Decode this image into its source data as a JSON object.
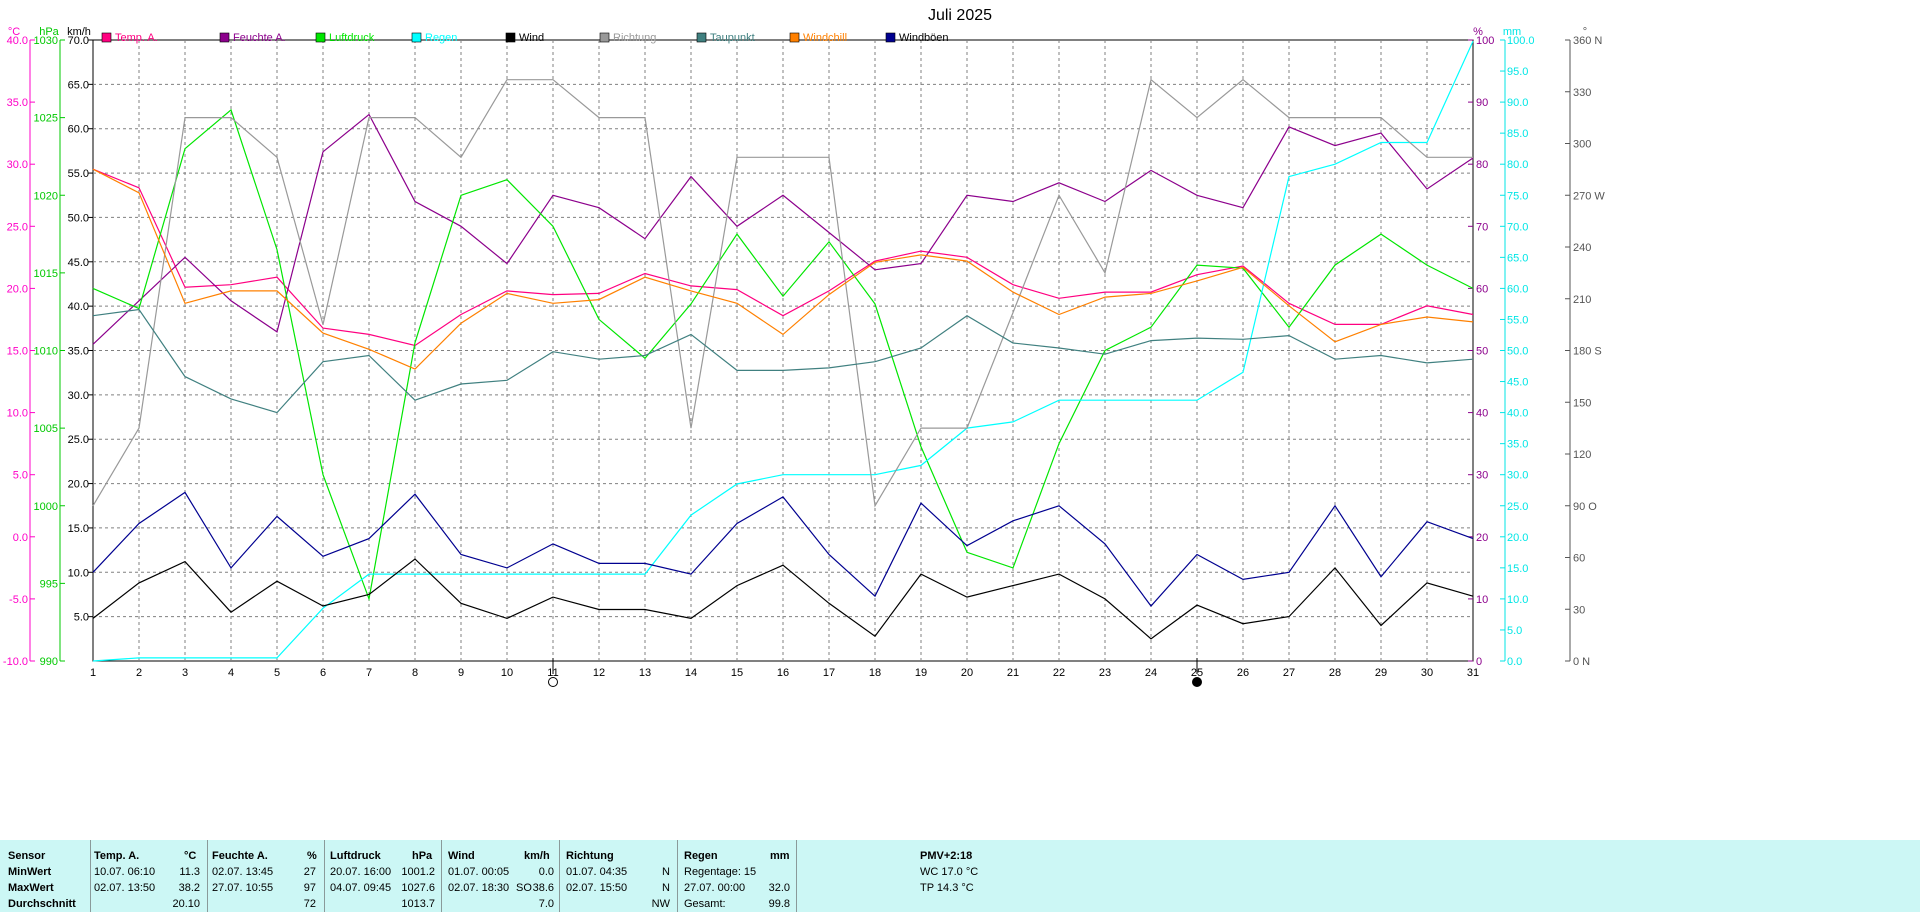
{
  "chart_data": {
    "type": "line",
    "title": "Juli 2025",
    "x": [
      1,
      2,
      3,
      4,
      5,
      6,
      7,
      8,
      9,
      10,
      11,
      12,
      13,
      14,
      15,
      16,
      17,
      18,
      19,
      20,
      21,
      22,
      23,
      24,
      25,
      26,
      27,
      28,
      29,
      30,
      31
    ],
    "grid": true,
    "legend_position": "top",
    "axes": {
      "temp": {
        "unit": "°C",
        "range": [
          -10,
          40
        ],
        "ticks": [
          "40.0",
          "35.0",
          "30.0",
          "25.0",
          "20.0",
          "15.0",
          "10.0",
          "5.0",
          "0.0",
          "-5.0",
          "-10.0"
        ],
        "color": "#ff00c8"
      },
      "pressure": {
        "unit": "hPa",
        "range": [
          990,
          1030
        ],
        "ticks": [
          "1030",
          "1025",
          "1020",
          "1015",
          "1010",
          "1005",
          "1000",
          "995",
          "990"
        ],
        "color": "#00c800"
      },
      "wind": {
        "unit": "km/h",
        "range": [
          0,
          70
        ],
        "ticks": [
          "70.0",
          "65.0",
          "60.0",
          "55.0",
          "50.0",
          "45.0",
          "40.0",
          "35.0",
          "30.0",
          "25.0",
          "20.0",
          "15.0",
          "10.0",
          "5.0"
        ],
        "color": "#000000"
      },
      "humidity": {
        "unit": "%",
        "range": [
          0,
          100
        ],
        "ticks": [
          "100",
          "90",
          "80",
          "70",
          "60",
          "50",
          "40",
          "30",
          "20",
          "10",
          "0"
        ],
        "color": "#8c008c"
      },
      "rain": {
        "unit": "mm",
        "range": [
          0,
          100
        ],
        "ticks": [
          "100.0",
          "95.0",
          "90.0",
          "85.0",
          "80.0",
          "75.0",
          "70.0",
          "65.0",
          "60.0",
          "55.0",
          "50.0",
          "45.0",
          "40.0",
          "35.0",
          "30.0",
          "25.0",
          "20.0",
          "15.0",
          "10.0",
          "5.0",
          "0.0"
        ],
        "color": "#00e6e6"
      },
      "direction": {
        "unit": "°",
        "range": [
          0,
          360
        ],
        "ticks": [
          "360 N",
          "330",
          "300",
          "270 W",
          "240",
          "210",
          "180 S",
          "150",
          "120",
          "90 O",
          "60",
          "30",
          "0 N"
        ],
        "color": "#555555"
      }
    },
    "series": [
      {
        "name": "Temp. A.",
        "axis": "temp",
        "color": "#ff0080",
        "values": [
          29.6,
          28.1,
          20.1,
          20.3,
          20.9,
          16.8,
          16.3,
          15.4,
          17.9,
          19.8,
          19.5,
          19.6,
          21.2,
          20.2,
          19.9,
          17.8,
          19.8,
          22.2,
          23.0,
          22.5,
          20.3,
          19.2,
          19.7,
          19.7,
          21.1,
          21.8,
          18.8,
          17.1,
          17.1,
          18.6,
          17.9
        ]
      },
      {
        "name": "Feuchte A.",
        "axis": "humidity",
        "color": "#8c008c",
        "values": [
          51,
          58,
          65,
          58,
          53,
          82,
          88,
          74,
          70,
          64,
          75,
          73,
          68,
          78,
          70,
          75,
          69,
          63,
          64,
          75,
          74,
          77,
          74,
          79,
          75,
          73,
          86,
          83,
          85,
          76,
          81
        ]
      },
      {
        "name": "Luftdruck",
        "axis": "pressure",
        "color": "#00e600",
        "values": [
          1014.0,
          1012.7,
          1023.0,
          1025.5,
          1016.5,
          1002.0,
          994.0,
          1010.5,
          1020.0,
          1021.0,
          1018.0,
          1012.0,
          1009.5,
          1013.0,
          1017.5,
          1013.5,
          1017.0,
          1013.0,
          1003.8,
          997.0,
          996.0,
          1004.0,
          1010.0,
          1011.5,
          1015.5,
          1015.3,
          1011.5,
          1015.5,
          1017.5,
          1015.5,
          1014.0
        ]
      },
      {
        "name": "Regen",
        "axis": "rain",
        "color": "#00ffff",
        "values": [
          0,
          0.5,
          0.5,
          0.5,
          0.5,
          8.5,
          14,
          14,
          14,
          14,
          14,
          14,
          14,
          23.5,
          28.5,
          30,
          30,
          30,
          31.5,
          37.5,
          38.5,
          42,
          42,
          42,
          42,
          46.5,
          78,
          80,
          83.5,
          83.5,
          99.8
        ]
      },
      {
        "name": "Wind",
        "axis": "wind",
        "color": "#000000",
        "values": [
          4.8,
          8.8,
          11.2,
          5.5,
          9.0,
          6.2,
          7.5,
          11.5,
          6.5,
          4.8,
          7.2,
          5.8,
          5.8,
          4.8,
          8.5,
          10.8,
          6.5,
          2.8,
          9.8,
          7.2,
          8.5,
          9.8,
          7.0,
          2.5,
          6.3,
          4.2,
          5.0,
          10.5,
          4.0,
          8.8,
          7.3
        ]
      },
      {
        "name": "Richtung",
        "axis": "direction",
        "color": "#999999",
        "values": [
          90,
          135,
          315,
          315,
          292,
          195,
          315,
          315,
          292,
          337,
          337,
          315,
          315,
          135,
          292,
          292,
          292,
          90,
          135,
          135,
          202,
          270,
          225,
          337,
          315,
          337,
          315,
          315,
          315,
          292,
          292
        ]
      },
      {
        "name": "Taupunkt",
        "axis": "temp",
        "color": "#408080",
        "values": [
          17.8,
          18.3,
          12.9,
          11.1,
          10.0,
          14.1,
          14.6,
          11.0,
          12.3,
          12.6,
          14.9,
          14.3,
          14.6,
          16.3,
          13.4,
          13.4,
          13.6,
          14.1,
          15.2,
          17.8,
          15.6,
          15.2,
          14.7,
          15.8,
          16.0,
          15.9,
          16.2,
          14.3,
          14.6,
          14.0,
          14.3
        ]
      },
      {
        "name": "Windchill",
        "axis": "temp",
        "color": "#ff8000",
        "values": [
          29.6,
          27.7,
          18.8,
          19.8,
          19.8,
          16.4,
          15.1,
          13.5,
          17.2,
          19.6,
          18.8,
          19.1,
          20.9,
          19.8,
          18.8,
          16.3,
          19.5,
          22.1,
          22.7,
          22.2,
          19.7,
          17.9,
          19.3,
          19.6,
          20.6,
          21.7,
          18.6,
          15.7,
          17.1,
          17.7,
          17.3
        ]
      },
      {
        "name": "Windböen",
        "axis": "wind",
        "color": "#000090",
        "values": [
          10.0,
          15.5,
          19.0,
          10.5,
          16.3,
          11.8,
          13.8,
          18.8,
          12.0,
          10.5,
          13.2,
          11.0,
          11.0,
          9.8,
          15.5,
          18.5,
          12.0,
          7.3,
          17.8,
          13.0,
          15.8,
          17.5,
          13.2,
          6.2,
          12.0,
          9.2,
          10.0,
          17.5,
          9.5,
          15.7,
          13.8
        ]
      }
    ],
    "markers": [
      {
        "day": 11,
        "label": "○"
      },
      {
        "day": 25,
        "label": "●"
      }
    ]
  },
  "stats": {
    "headers": {
      "sensor": "Sensor",
      "temp": "Temp. A.",
      "temp_unit": "°C",
      "hum": "Feuchte A.",
      "hum_unit": "%",
      "pres": "Luftdruck",
      "pres_unit": "hPa",
      "wind": "Wind",
      "wind_unit": "km/h",
      "dir": "Richtung",
      "rain": "Regen",
      "rain_unit": "mm"
    },
    "rows": {
      "min": "MinWert",
      "max": "MaxWert",
      "avg": "Durchschnitt"
    },
    "temp": {
      "min_time": "10.07.  06:10",
      "min": "11.3",
      "max_time": "02.07.  13:50",
      "max": "38.2",
      "avg": "20.10"
    },
    "hum": {
      "min_time": "02.07.  13:45",
      "min": "27",
      "max_time": "27.07.  10:55",
      "max": "97",
      "avg": "72"
    },
    "pres": {
      "min_time": "20.07.  16:00",
      "min": "1001.2",
      "max_time": "04.07.  09:45",
      "max": "1027.6",
      "avg": "1013.7"
    },
    "wind": {
      "min_time": "01.07.  00:05",
      "min": "0.0",
      "max_time": "02.07.  18:30",
      "max_dir": "SO",
      "max": "38.6",
      "avg": "7.0"
    },
    "dir": {
      "min_time": "01.07.  04:35",
      "min": "N",
      "max_time": "02.07.  15:50",
      "max": "N",
      "avg": "NW"
    },
    "rain": {
      "days": "Regentage: 15",
      "max_time": "27.07.  00:00",
      "max": "32.0",
      "total_label": "Gesamt:",
      "total": "99.8"
    },
    "extra": {
      "pmv": "PMV+2:18",
      "wc": "WC 17.0 °C",
      "tp": "TP 14.3 °C"
    }
  }
}
